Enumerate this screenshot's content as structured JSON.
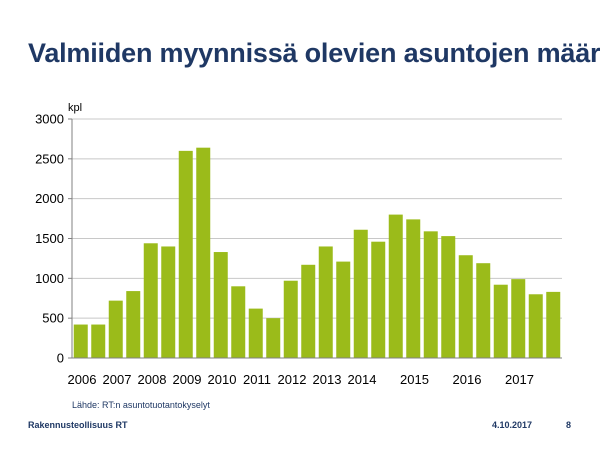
{
  "slide": {
    "title": "Valmiiden myynnissä olevien asuntojen määrä",
    "source": "Lähde: RT:n asuntotuotantokyselyt",
    "organization": "Rakennusteollisuus RT",
    "date": "4.10.2017",
    "page_number": "8"
  },
  "colors": {
    "title": "#1f3864",
    "bar": "#9bbb1a",
    "grid": "#c8c8c8",
    "axis": "#808080"
  },
  "chart_data": {
    "type": "bar",
    "ylabel": "kpl",
    "ylim": [
      0,
      3000
    ],
    "yticks": [
      0,
      500,
      1000,
      1500,
      2000,
      2500,
      3000
    ],
    "grid": true,
    "values": [
      420,
      420,
      720,
      840,
      1440,
      1400,
      2600,
      2640,
      1330,
      900,
      620,
      500,
      970,
      1170,
      1400,
      1210,
      1610,
      1460,
      1800,
      1740,
      1590,
      1530,
      1290,
      1190,
      920,
      990,
      800,
      830
    ],
    "x_tick_labels": [
      {
        "label": "2006",
        "index": 0
      },
      {
        "label": "2007",
        "index": 2
      },
      {
        "label": "2008",
        "index": 4
      },
      {
        "label": "2009",
        "index": 6
      },
      {
        "label": "2010",
        "index": 8
      },
      {
        "label": "2011",
        "index": 10
      },
      {
        "label": "2012",
        "index": 12
      },
      {
        "label": "2013",
        "index": 14
      },
      {
        "label": "2014",
        "index": 16
      },
      {
        "label": "2015",
        "index": 19
      },
      {
        "label": "2016",
        "index": 22
      },
      {
        "label": "2017",
        "index": 25
      }
    ]
  }
}
